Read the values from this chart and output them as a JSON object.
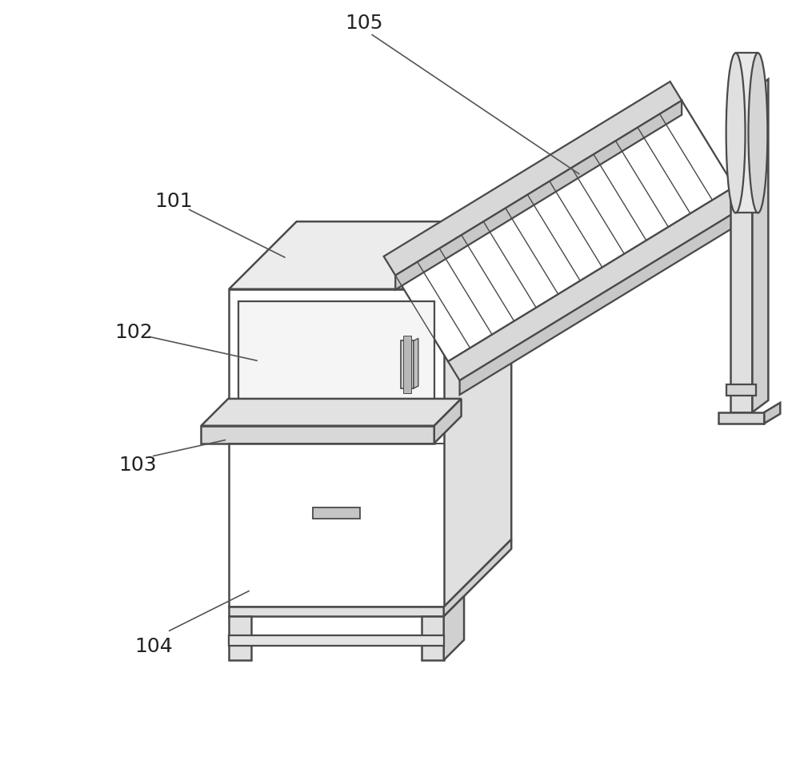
{
  "bg_color": "#ffffff",
  "line_color": "#4a4a4a",
  "line_width": 1.8,
  "label_fontsize": 18,
  "ann_color": "#555555",
  "ann_lw": 1.2
}
